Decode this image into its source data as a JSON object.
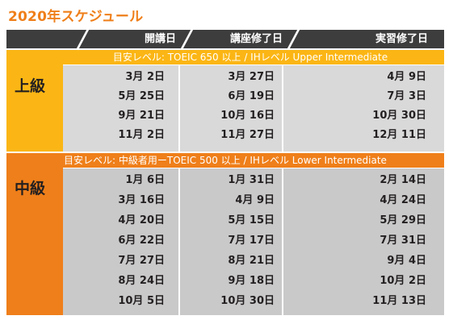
{
  "title": "2020年スケジュール",
  "header": [
    "開講日",
    "講座修了日",
    "実習修了日"
  ],
  "colors": {
    "orange": "#ef7f1a",
    "yellow": "#fbb615",
    "header": "#3d3d3d",
    "panel_upper": "#d9d9d9",
    "panel_lower": "#c9c9c9"
  },
  "upper": {
    "level": "上級",
    "band": "目安レベル: TOEIC 650 以上 / IHレベル Upper Intermediate",
    "rows": [
      [
        "3月 2日",
        "3月 27日",
        "4月 9日"
      ],
      [
        "5月 25日",
        "6月 19日",
        "7月 3日"
      ],
      [
        "9月 21日",
        "10月 16日",
        "10月 30日"
      ],
      [
        "11月 2日",
        "11月 27日",
        "12月 11日"
      ]
    ]
  },
  "lower": {
    "level": "中級",
    "band": "目安レベル: 中級者用ーTOEIC 500 以上 / IHレベル Lower Intermediate",
    "rows": [
      [
        "1月 6日",
        "1月 31日",
        "2月 14日"
      ],
      [
        "3月 16日",
        "4月 9日",
        "4月 24日"
      ],
      [
        "4月 20日",
        "5月 15日",
        "5月 29日"
      ],
      [
        "6月 22日",
        "7月 17日",
        "7月 31日"
      ],
      [
        "7月 27日",
        "8月 21日",
        "9月 4日"
      ],
      [
        "8月 24日",
        "9月 18日",
        "10月 2日"
      ],
      [
        "10月 5日",
        "10月 30日",
        "11月 13日"
      ]
    ]
  }
}
